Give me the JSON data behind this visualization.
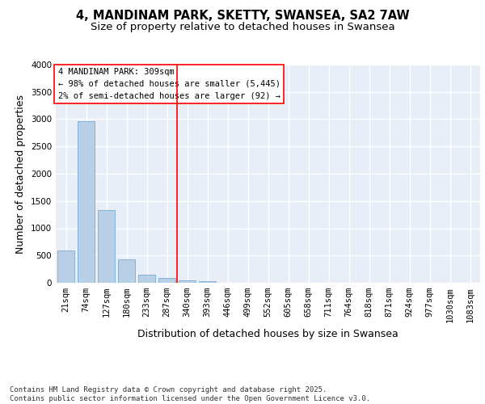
{
  "title_line1": "4, MANDINAM PARK, SKETTY, SWANSEA, SA2 7AW",
  "title_line2": "Size of property relative to detached houses in Swansea",
  "xlabel": "Distribution of detached houses by size in Swansea",
  "ylabel": "Number of detached properties",
  "background_color": "#e8eef8",
  "bar_color": "#b8cfe8",
  "bar_edge_color": "#7aaace",
  "vline_color": "red",
  "vline_x": 5.5,
  "annotation_text": "4 MANDINAM PARK: 309sqm\n← 98% of detached houses are smaller (5,445)\n2% of semi-detached houses are larger (92) →",
  "annotation_box_color": "white",
  "annotation_box_edge_color": "red",
  "categories": [
    "21sqm",
    "74sqm",
    "127sqm",
    "180sqm",
    "233sqm",
    "287sqm",
    "340sqm",
    "393sqm",
    "446sqm",
    "499sqm",
    "552sqm",
    "605sqm",
    "658sqm",
    "711sqm",
    "764sqm",
    "818sqm",
    "871sqm",
    "924sqm",
    "977sqm",
    "1030sqm",
    "1083sqm"
  ],
  "values": [
    590,
    2970,
    1340,
    430,
    155,
    85,
    50,
    30,
    0,
    0,
    0,
    0,
    0,
    0,
    0,
    0,
    0,
    0,
    0,
    0,
    0
  ],
  "ylim": [
    0,
    4000
  ],
  "yticks": [
    0,
    500,
    1000,
    1500,
    2000,
    2500,
    3000,
    3500,
    4000
  ],
  "footer_text": "Contains HM Land Registry data © Crown copyright and database right 2025.\nContains public sector information licensed under the Open Government Licence v3.0.",
  "title_fontsize": 10.5,
  "subtitle_fontsize": 9.5,
  "tick_fontsize": 7.5,
  "label_fontsize": 9,
  "annotation_fontsize": 7.5,
  "footer_fontsize": 6.5
}
